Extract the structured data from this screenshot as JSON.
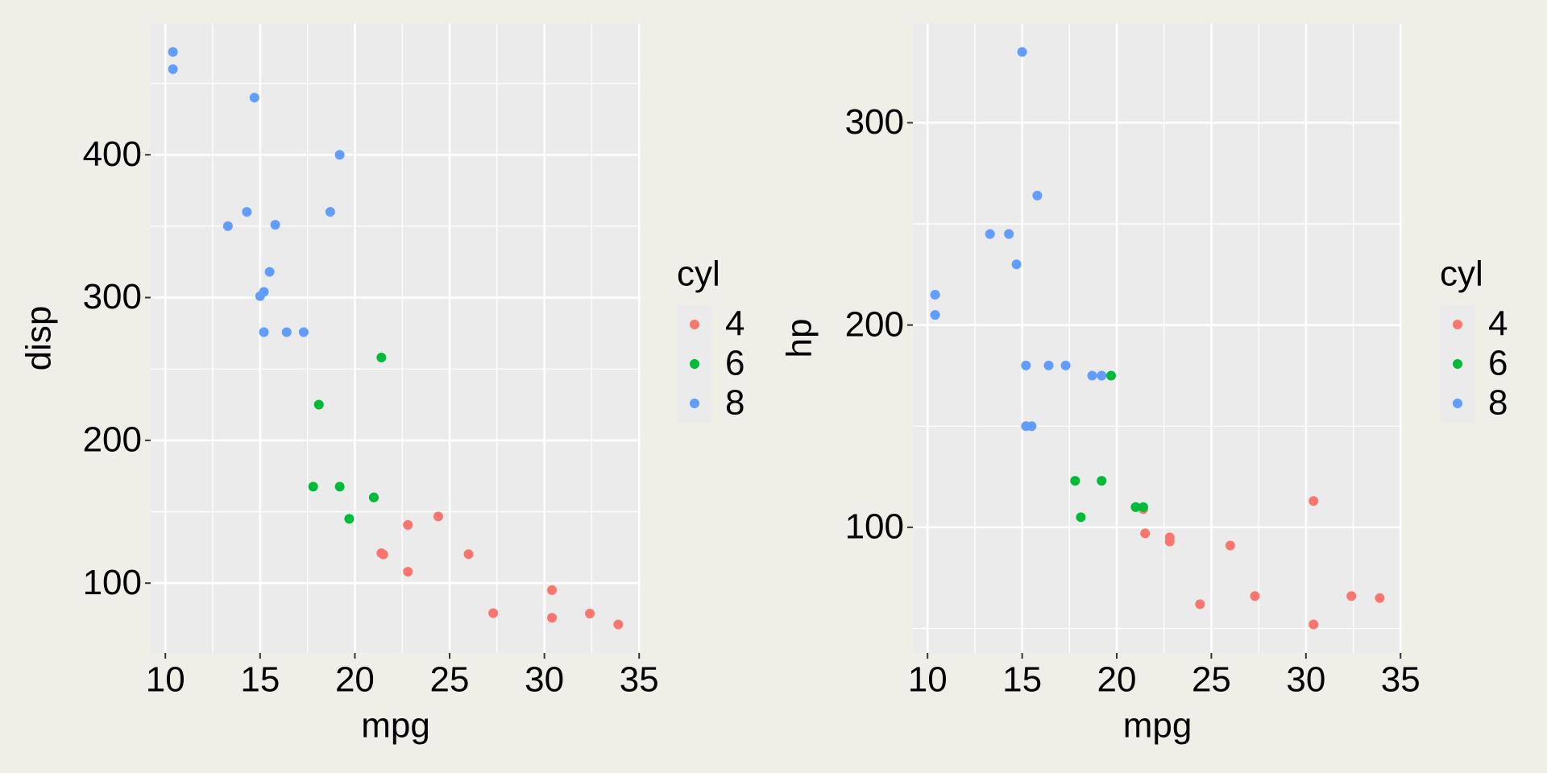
{
  "chart_data": [
    {
      "type": "scatter",
      "x_label": "mpg",
      "y_label": "disp",
      "legend_title": "cyl",
      "xlim": [
        9.225,
        35.075
      ],
      "xticks": [
        10,
        15,
        20,
        25,
        30,
        35
      ],
      "minor_xticks": [
        12.5,
        17.5,
        22.5,
        27.5,
        32.5
      ],
      "ylim": [
        51.055,
        492.045
      ],
      "yticks": [
        100,
        200,
        300,
        400
      ],
      "minor_yticks": [
        150,
        250,
        350,
        450
      ],
      "grid": true,
      "series": [
        {
          "name": "4",
          "color": "#F8766D",
          "x": [
            22.8,
            24.4,
            22.8,
            32.4,
            30.4,
            33.9,
            21.5,
            27.3,
            26.0,
            30.4,
            21.4
          ],
          "values": [
            108,
            146.7,
            140.8,
            78.7,
            75.7,
            71.1,
            120.1,
            79,
            120.3,
            95.1,
            121
          ]
        },
        {
          "name": "6",
          "color": "#00BA38",
          "x": [
            21.0,
            21.0,
            21.4,
            18.1,
            19.2,
            17.8,
            19.7
          ],
          "values": [
            160,
            160,
            258,
            225,
            167.6,
            167.6,
            145
          ]
        },
        {
          "name": "8",
          "color": "#619CFF",
          "x": [
            18.7,
            14.3,
            16.4,
            17.3,
            15.2,
            10.4,
            10.4,
            14.7,
            15.5,
            15.2,
            13.3,
            19.2,
            15.8,
            15.0
          ],
          "values": [
            360,
            360,
            275.8,
            275.8,
            275.8,
            472,
            460,
            440,
            318,
            304,
            350,
            400,
            351,
            301
          ]
        }
      ]
    },
    {
      "type": "scatter",
      "x_label": "mpg",
      "y_label": "hp",
      "legend_title": "cyl",
      "xlim": [
        9.225,
        35.075
      ],
      "xticks": [
        10,
        15,
        20,
        25,
        30,
        35
      ],
      "minor_xticks": [
        12.5,
        17.5,
        22.5,
        27.5,
        32.5
      ],
      "ylim": [
        37.85,
        349.15
      ],
      "yticks": [
        100,
        200,
        300
      ],
      "minor_yticks": [
        50,
        150,
        250
      ],
      "grid": true,
      "series": [
        {
          "name": "4",
          "color": "#F8766D",
          "x": [
            22.8,
            24.4,
            22.8,
            32.4,
            30.4,
            33.9,
            21.5,
            27.3,
            26.0,
            30.4,
            21.4
          ],
          "values": [
            93,
            62,
            95,
            66,
            52,
            65,
            97,
            66,
            91,
            113,
            109
          ]
        },
        {
          "name": "6",
          "color": "#00BA38",
          "x": [
            21.0,
            21.0,
            21.4,
            18.1,
            19.2,
            17.8,
            19.7
          ],
          "values": [
            110,
            110,
            110,
            105,
            123,
            123,
            175
          ]
        },
        {
          "name": "8",
          "color": "#619CFF",
          "x": [
            18.7,
            14.3,
            16.4,
            17.3,
            15.2,
            10.4,
            10.4,
            14.7,
            15.5,
            15.2,
            13.3,
            19.2,
            15.8,
            15.0
          ],
          "values": [
            175,
            245,
            180,
            180,
            180,
            205,
            215,
            230,
            150,
            150,
            245,
            175,
            264,
            335
          ]
        }
      ]
    }
  ]
}
